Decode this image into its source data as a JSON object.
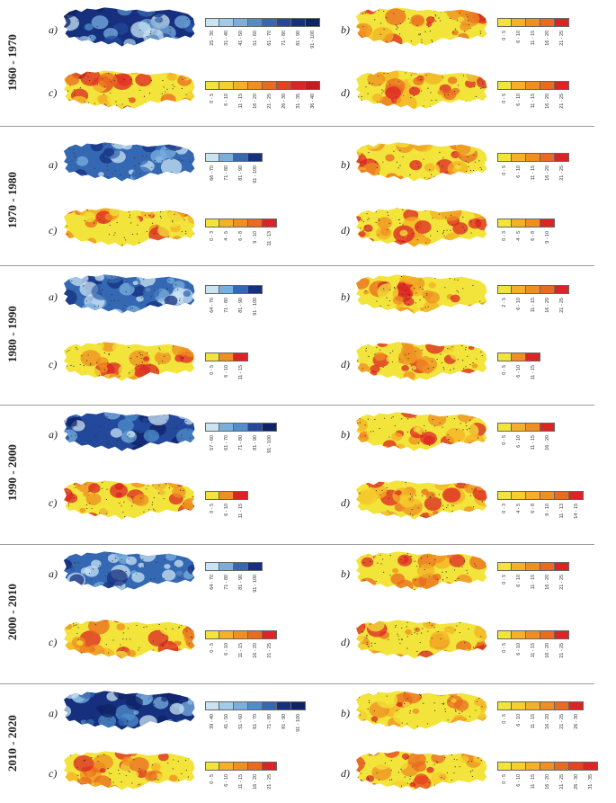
{
  "figure": "Panels of maps of Turkey per decade, each with a graduated colour legend",
  "palettes": {
    "blue": [
      "#c9e3f3",
      "#a2cbe9",
      "#78afdd",
      "#4f8ecb",
      "#3568b3",
      "#23489c",
      "#16307f",
      "#0e2266"
    ],
    "warm": [
      "#f2e43a",
      "#f5cf2d",
      "#f4b026",
      "#ef8f22",
      "#ea6a20",
      "#e5421f",
      "#dc2424"
    ]
  },
  "decades": [
    {
      "label": "1960 - 1970",
      "panels": [
        {
          "id": "a)",
          "theme": "blue",
          "classes": [
            "25 - 30",
            "31 - 40",
            "41 - 50",
            "51 - 60",
            "61 - 70",
            "71 - 80",
            "81 - 90",
            "91 - 100"
          ],
          "swatch_colors": [
            "#c9e3f3",
            "#a2cbe9",
            "#78afdd",
            "#4f8ecb",
            "#3568b3",
            "#23489c",
            "#16307f",
            "#0e2266"
          ]
        },
        {
          "id": "b)",
          "theme": "warm",
          "classes": [
            "0 - 5",
            "6 - 10",
            "11 - 15",
            "16 - 20",
            "21 - 25"
          ],
          "swatch_colors": [
            "#f2e43a",
            "#f4b026",
            "#ef8f22",
            "#ea6a20",
            "#dc2424"
          ]
        },
        {
          "id": "c)",
          "theme": "warm",
          "classes": [
            "0 - 5",
            "6 - 10",
            "11 - 15",
            "16 - 20",
            "21 - 25",
            "26 - 30",
            "31 - 35",
            "36 - 40"
          ],
          "swatch_colors": [
            "#f2e43a",
            "#f5cf2d",
            "#f4b026",
            "#ef8f22",
            "#ea6a20",
            "#e5421f",
            "#dc2424",
            "#c81c1c"
          ]
        },
        {
          "id": "d)",
          "theme": "warm",
          "classes": [
            "0 - 5",
            "6 - 10",
            "11 - 15",
            "16 - 20",
            "21 - 25"
          ],
          "swatch_colors": [
            "#f2e43a",
            "#f4b026",
            "#ef8f22",
            "#ea6a20",
            "#dc2424"
          ]
        }
      ]
    },
    {
      "label": "1970 - 1980",
      "panels": [
        {
          "id": "a)",
          "theme": "blue",
          "classes": [
            "66 - 70",
            "71 - 80",
            "81 - 90",
            "91 - 100"
          ],
          "swatch_colors": [
            "#c9e3f3",
            "#78afdd",
            "#3568b3",
            "#16307f"
          ]
        },
        {
          "id": "b)",
          "theme": "warm",
          "classes": [
            "0 - 5",
            "6 - 10",
            "11 - 15",
            "16 - 20",
            "21 - 25"
          ],
          "swatch_colors": [
            "#f2e43a",
            "#f4b026",
            "#ef8f22",
            "#ea6a20",
            "#dc2424"
          ]
        },
        {
          "id": "c)",
          "theme": "warm",
          "classes": [
            "0 - 3",
            "4 - 5",
            "6 - 8",
            "9 - 10",
            "11 - 13"
          ],
          "swatch_colors": [
            "#f2e43a",
            "#f4b026",
            "#ef8f22",
            "#ea6a20",
            "#dc2424"
          ]
        },
        {
          "id": "d)",
          "theme": "warm",
          "classes": [
            "0 - 3",
            "4 - 5",
            "6 - 8",
            "9 - 10"
          ],
          "swatch_colors": [
            "#f2e43a",
            "#f4b026",
            "#ef8f22",
            "#dc2424"
          ]
        }
      ]
    },
    {
      "label": "1980 - 1990",
      "panels": [
        {
          "id": "a)",
          "theme": "blue",
          "classes": [
            "64 - 70",
            "71 - 80",
            "81 - 90",
            "91 - 100"
          ],
          "swatch_colors": [
            "#c9e3f3",
            "#78afdd",
            "#3568b3",
            "#16307f"
          ]
        },
        {
          "id": "b)",
          "theme": "warm",
          "classes": [
            "2 - 5",
            "6 - 10",
            "11 - 15",
            "16 - 20",
            "21 - 25"
          ],
          "swatch_colors": [
            "#f2e43a",
            "#f4b026",
            "#ef8f22",
            "#ea6a20",
            "#dc2424"
          ]
        },
        {
          "id": "c)",
          "theme": "warm",
          "classes": [
            "0 - 5",
            "6 - 10",
            "11 - 15"
          ],
          "swatch_colors": [
            "#f2e43a",
            "#ef8f22",
            "#dc2424"
          ]
        },
        {
          "id": "d)",
          "theme": "warm",
          "classes": [
            "0 - 5",
            "6 - 10",
            "11 - 15"
          ],
          "swatch_colors": [
            "#f2e43a",
            "#ef8f22",
            "#dc2424"
          ]
        }
      ]
    },
    {
      "label": "1990 - 2000",
      "panels": [
        {
          "id": "a)",
          "theme": "blue",
          "classes": [
            "57 - 60",
            "61 - 70",
            "71 - 80",
            "81 - 90",
            "91 - 100"
          ],
          "swatch_colors": [
            "#c9e3f3",
            "#78afdd",
            "#4f8ecb",
            "#23489c",
            "#0e2266"
          ]
        },
        {
          "id": "b)",
          "theme": "warm",
          "classes": [
            "0 - 5",
            "6 - 10",
            "11 - 15",
            "16 - 20"
          ],
          "swatch_colors": [
            "#f2e43a",
            "#f4b026",
            "#ef8f22",
            "#dc2424"
          ]
        },
        {
          "id": "c)",
          "theme": "warm",
          "classes": [
            "0 - 5",
            "6 - 10",
            "11 - 15"
          ],
          "swatch_colors": [
            "#f2e43a",
            "#ef8f22",
            "#dc2424"
          ]
        },
        {
          "id": "d)",
          "theme": "warm",
          "classes": [
            "0 - 3",
            "4 - 5",
            "6 - 8",
            "9 - 10",
            "11 - 13",
            "14 - 15"
          ],
          "swatch_colors": [
            "#f2e43a",
            "#f5cf2d",
            "#f4b026",
            "#ef8f22",
            "#ea6a20",
            "#dc2424"
          ]
        }
      ]
    },
    {
      "label": "2000 - 2010",
      "panels": [
        {
          "id": "a)",
          "theme": "blue",
          "classes": [
            "64 - 70",
            "71 - 80",
            "81 - 90",
            "91 - 100"
          ],
          "swatch_colors": [
            "#c9e3f3",
            "#78afdd",
            "#3568b3",
            "#16307f"
          ]
        },
        {
          "id": "b)",
          "theme": "warm",
          "classes": [
            "0 - 5",
            "6 - 10",
            "11 - 15",
            "16 - 20",
            "21 - 25"
          ],
          "swatch_colors": [
            "#f2e43a",
            "#f4b026",
            "#ef8f22",
            "#ea6a20",
            "#dc2424"
          ]
        },
        {
          "id": "c)",
          "theme": "warm",
          "classes": [
            "0 - 5",
            "6 - 10",
            "11 - 15",
            "16 - 20",
            "21 - 25"
          ],
          "swatch_colors": [
            "#f2e43a",
            "#f4b026",
            "#ef8f22",
            "#ea6a20",
            "#dc2424"
          ]
        },
        {
          "id": "d)",
          "theme": "warm",
          "classes": [
            "0 - 5",
            "6 - 10",
            "11 - 15",
            "16 - 20",
            "21 - 25"
          ],
          "swatch_colors": [
            "#f2e43a",
            "#f4b026",
            "#ef8f22",
            "#ea6a20",
            "#dc2424"
          ]
        }
      ]
    },
    {
      "label": "2010 - 2020",
      "panels": [
        {
          "id": "a)",
          "theme": "blue",
          "classes": [
            "39 - 40",
            "41 - 50",
            "51 - 60",
            "61 - 70",
            "71 - 80",
            "81 - 90",
            "91 - 100"
          ],
          "swatch_colors": [
            "#c9e3f3",
            "#a2cbe9",
            "#78afdd",
            "#4f8ecb",
            "#3568b3",
            "#16307f",
            "#0e2266"
          ]
        },
        {
          "id": "b)",
          "theme": "warm",
          "classes": [
            "0 - 5",
            "6 - 10",
            "11 - 15",
            "16 - 20",
            "21 - 25",
            "26 - 30"
          ],
          "swatch_colors": [
            "#f2e43a",
            "#f5cf2d",
            "#f4b026",
            "#ef8f22",
            "#ea6a20",
            "#dc2424"
          ]
        },
        {
          "id": "c)",
          "theme": "warm",
          "classes": [
            "0 - 5",
            "6 - 10",
            "11 - 15",
            "16 - 20",
            "21 - 25"
          ],
          "swatch_colors": [
            "#f2e43a",
            "#f4b026",
            "#ef8f22",
            "#ea6a20",
            "#dc2424"
          ]
        },
        {
          "id": "d)",
          "theme": "warm",
          "classes": [
            "0 - 5",
            "6 - 10",
            "11 - 15",
            "16 - 20",
            "21 - 25",
            "26 - 30",
            "31 - 35"
          ],
          "swatch_colors": [
            "#f2e43a",
            "#f5cf2d",
            "#f4b026",
            "#ef8f22",
            "#ea6a20",
            "#e5421f",
            "#dc2424"
          ]
        }
      ]
    }
  ]
}
